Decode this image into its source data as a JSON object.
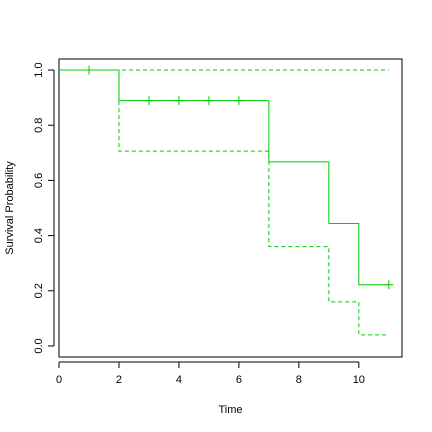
{
  "chart_data": {
    "type": "line",
    "title": "",
    "xlabel": "Time",
    "ylabel": "Survival Probability",
    "xlim": [
      0,
      11.44
    ],
    "ylim": [
      -0.04,
      1.04
    ],
    "x_ticks": [
      0,
      2,
      4,
      6,
      8,
      10
    ],
    "y_ticks": [
      0.0,
      0.2,
      0.4,
      0.6,
      0.8,
      1.0
    ],
    "x_tick_labels": [
      "0",
      "2",
      "4",
      "6",
      "8",
      "10"
    ],
    "y_tick_labels": [
      "0.0",
      "0.2",
      "0.4",
      "0.6",
      "0.8",
      "1.0"
    ],
    "grid": false,
    "color": "#00cd00",
    "series": [
      {
        "role": "estimate",
        "style": "solid",
        "steps": [
          [
            0,
            1.0
          ],
          [
            2,
            0.889
          ],
          [
            7,
            0.667
          ],
          [
            9,
            0.444
          ],
          [
            10,
            0.222
          ],
          [
            11,
            0.222
          ]
        ]
      },
      {
        "role": "upper-ci",
        "style": "dashed",
        "steps": [
          [
            0,
            1.0
          ],
          [
            11,
            1.0
          ]
        ]
      },
      {
        "role": "lower-ci",
        "style": "dashed",
        "steps": [
          [
            0,
            1.0
          ],
          [
            2,
            0.706
          ],
          [
            7,
            0.36
          ],
          [
            9,
            0.16
          ],
          [
            10,
            0.04
          ],
          [
            11,
            0.04
          ]
        ]
      }
    ],
    "censored": [
      {
        "x": 1,
        "y": 1.0
      },
      {
        "x": 3,
        "y": 0.889
      },
      {
        "x": 4,
        "y": 0.889
      },
      {
        "x": 5,
        "y": 0.889
      },
      {
        "x": 6,
        "y": 0.889
      },
      {
        "x": 11,
        "y": 0.222
      }
    ]
  }
}
